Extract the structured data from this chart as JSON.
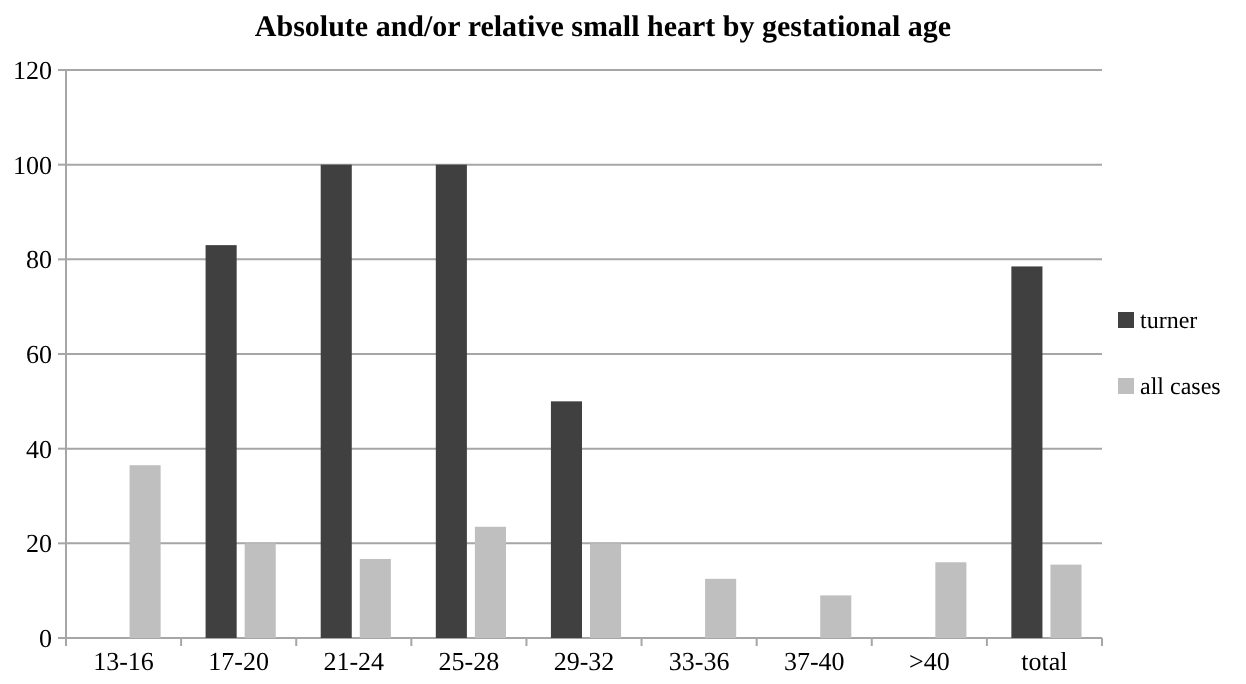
{
  "chart_data": {
    "type": "bar",
    "title": "Absolute and/or relative small heart by gestational age",
    "categories": [
      "13-16",
      "17-20",
      "21-24",
      "25-28",
      "29-32",
      "33-36",
      "37-40",
      ">40",
      "total"
    ],
    "series": [
      {
        "name": "turner",
        "color": "#404040",
        "values": [
          null,
          83,
          100,
          100,
          50,
          null,
          null,
          null,
          78.5
        ]
      },
      {
        "name": "all cases",
        "color": "#bfbfbf",
        "values": [
          36.5,
          20,
          16.7,
          23.5,
          20,
          12.5,
          9,
          16,
          15.5
        ]
      }
    ],
    "ylim": [
      0,
      120
    ],
    "yticks": [
      0,
      20,
      40,
      60,
      80,
      100,
      120
    ],
    "grid": "y",
    "legend": "right"
  }
}
